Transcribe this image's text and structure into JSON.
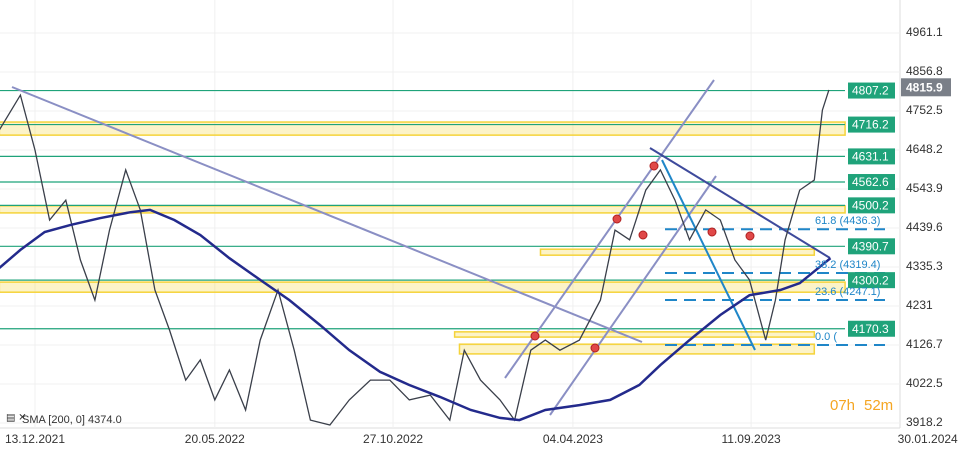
{
  "chart_data": {
    "type": "line",
    "xlim": [
      -21.6,
      533.9
    ],
    "ylim": [
      3904.9,
      5049.3
    ],
    "yticks": [
      4961.1,
      4856.8,
      4752.5,
      4648.2,
      4543.9,
      4439.6,
      4335.3,
      4231.0,
      4126.7,
      4022.5,
      3918.2
    ],
    "xticks": [
      {
        "value": 0,
        "label": "13.12.2021"
      },
      {
        "value": 111,
        "label": "20.05.2022"
      },
      {
        "value": 221,
        "label": "27.10.2022"
      },
      {
        "value": 332,
        "label": "04.04.2023"
      },
      {
        "value": 442,
        "label": "11.09.2023"
      },
      {
        "value": 551,
        "label": "30.01.2024"
      }
    ],
    "series": [
      {
        "color": "#3a3f4a",
        "x": [
          -22,
          -9,
          0,
          9,
          19,
          28,
          37,
          46,
          56,
          65,
          74,
          83,
          93,
          102,
          111,
          120,
          130,
          139,
          150,
          160,
          170,
          182,
          194,
          207,
          219,
          231,
          244,
          256,
          265,
          275,
          287,
          296,
          306,
          315,
          324,
          336,
          349,
          358,
          367,
          377,
          386,
          395,
          404,
          414,
          423,
          432,
          441,
          451,
          457,
          463,
          472,
          481,
          486,
          490
        ],
        "values": [
          4702,
          4795,
          4648,
          4461,
          4514,
          4354,
          4247,
          4434,
          4595,
          4488,
          4274,
          4167,
          4033,
          4087,
          3980,
          4060,
          3953,
          4140,
          4274,
          4113,
          3926,
          3913,
          3980,
          4033,
          4033,
          3980,
          3993,
          3926,
          4113,
          4033,
          3980,
          3926,
          4113,
          4140,
          4113,
          4140,
          4247,
          4434,
          4408,
          4541,
          4595,
          4514,
          4408,
          4488,
          4461,
          4354,
          4301,
          4140,
          4247,
          4408,
          4541,
          4568,
          4755,
          4809
        ]
      },
      {
        "color": "#232a8c",
        "x": [
          -22,
          -9,
          6,
          22,
          40,
          59,
          71,
          86,
          102,
          120,
          139,
          157,
          176,
          194,
          213,
          231,
          250,
          269,
          287,
          299,
          315,
          336,
          355,
          373,
          386,
          404,
          423,
          441,
          460,
          472,
          491
        ],
        "values": [
          4333,
          4381,
          4429,
          4448,
          4466,
          4482,
          4488,
          4461,
          4421,
          4359,
          4301,
          4247,
          4180,
          4113,
          4055,
          4020,
          3988,
          3953,
          3932,
          3926,
          3953,
          3966,
          3980,
          4020,
          4073,
          4140,
          4207,
          4260,
          4274,
          4292,
          4359
        ]
      }
    ],
    "levels": [
      4807.2,
      4716.2,
      4631.1,
      4562.6,
      4500.2,
      4390.7,
      4300.2,
      4170.3
    ],
    "level_color": "#1fa37a",
    "zones": [
      {
        "low": 4688,
        "high": 4723,
        "start": -22,
        "end": 500
      },
      {
        "low": 4480,
        "high": 4499,
        "start": -22,
        "end": 500
      },
      {
        "low": 4367,
        "high": 4383,
        "start": 312,
        "end": 481
      },
      {
        "low": 4268,
        "high": 4295,
        "start": -22,
        "end": 500
      },
      {
        "low": 4148,
        "high": 4162,
        "start": 259,
        "end": 481
      },
      {
        "low": 4103,
        "high": 4129,
        "start": 262,
        "end": 481
      }
    ],
    "zone_color": "#f5d33a",
    "fib_levels": [
      {
        "value": 4436.3,
        "label": "61.8 (4436.3)"
      },
      {
        "value": 4319.4,
        "label": "38.2 (4319.4)"
      },
      {
        "value": 4247.1,
        "label": "23.6 (4247.1)"
      },
      {
        "value": 4126.7,
        "label": "0.0 ("
      }
    ],
    "fib_color": "#1f86c8",
    "last_price": 4815.9,
    "legend": "SMA [200, 0] 4374.0",
    "timer_hours": "07h",
    "timer_minutes": "52m"
  }
}
